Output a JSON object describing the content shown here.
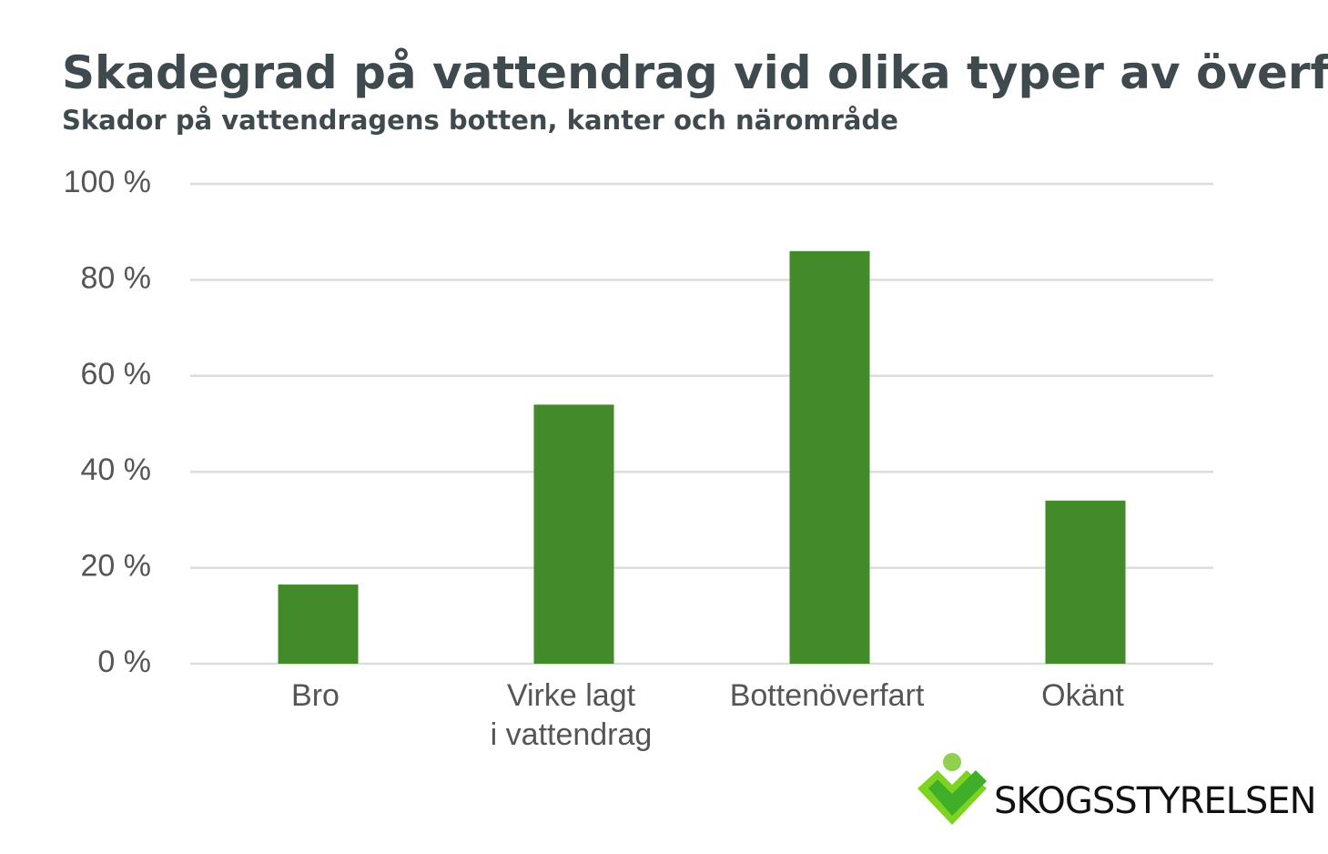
{
  "chart_data": {
    "type": "bar",
    "title": "Skadegrad på vattendrag vid olika typer av överfarter",
    "subtitle": "Skador på vattendragens botten, kanter och närområde",
    "categories": [
      "Bro",
      "Virke lagt\ni vattendrag",
      "Bottenöverfart",
      "Okänt"
    ],
    "values": [
      16.5,
      54,
      86,
      34
    ],
    "color": "#428a2a",
    "ylim": [
      0,
      100
    ],
    "yticks": [
      {
        "value": 0,
        "label": "0 %"
      },
      {
        "value": 20,
        "label": "20 %"
      },
      {
        "value": 40,
        "label": "40 %"
      },
      {
        "value": 60,
        "label": "60 %"
      },
      {
        "value": 80,
        "label": "80 %"
      },
      {
        "value": 100,
        "label": "100 %"
      }
    ],
    "grid": true
  },
  "logo": {
    "text": "SKOGSSTYRELSEN"
  }
}
